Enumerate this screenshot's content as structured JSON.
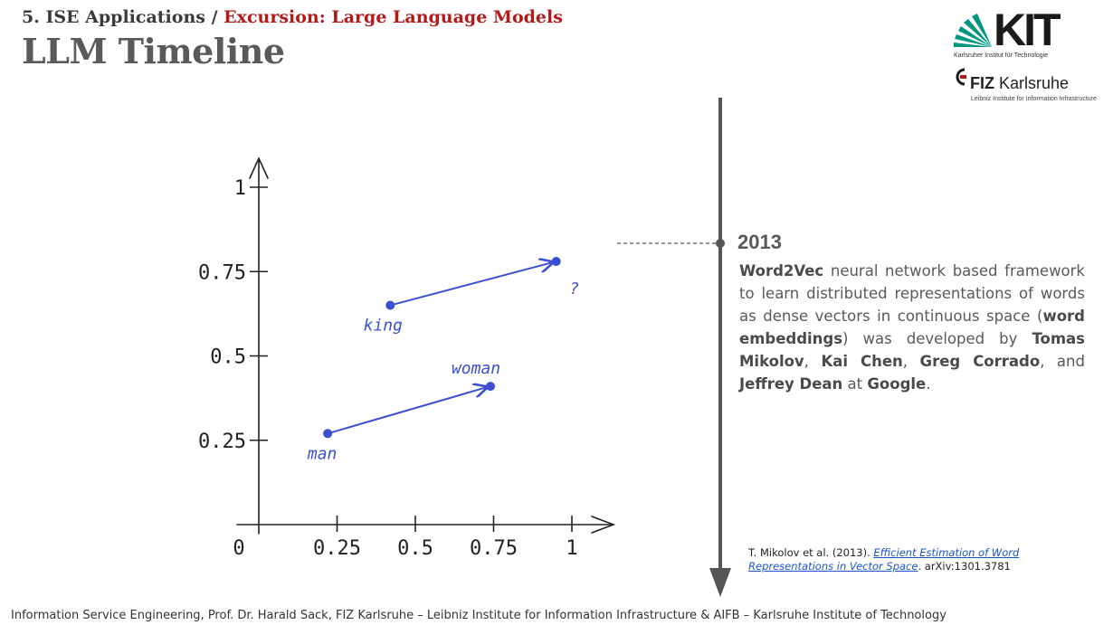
{
  "header": {
    "section": "5. ISE Applications / ",
    "topic": "Excursion: Large Language Models",
    "title": "LLM Timeline"
  },
  "logos": {
    "kit_text": "KIT",
    "kit_subtitle": "Karlsruher Institut für Technologie",
    "fiz_bold": "FIZ",
    "fiz_rest": " Karlsruhe",
    "fiz_subtitle": "Leibniz Institute for Information Infrastructure"
  },
  "timeline": {
    "year": "2013",
    "description": [
      {
        "text": "Word2Vec",
        "bold": true
      },
      {
        "text": " neural network based framework to learn distributed representations of words as dense vectors in continuous space (",
        "bold": false
      },
      {
        "text": "word embeddings",
        "bold": true
      },
      {
        "text": ") was developed by ",
        "bold": false
      },
      {
        "text": "Tomas Mikolov",
        "bold": true
      },
      {
        "text": ", ",
        "bold": false
      },
      {
        "text": "Kai Chen",
        "bold": true
      },
      {
        "text": ", ",
        "bold": false
      },
      {
        "text": "Greg Corrado",
        "bold": true
      },
      {
        "text": ", and ",
        "bold": false
      },
      {
        "text": "Jeffrey Dean",
        "bold": true
      },
      {
        "text": " at ",
        "bold": false
      },
      {
        "text": "Google",
        "bold": true
      },
      {
        "text": ".",
        "bold": false
      }
    ]
  },
  "reference": {
    "prefix": "T. Mikolov et al. (2013). ",
    "link_text": "Efficient Estimation of Word Representations in Vector Space",
    "suffix": ". arXiv:1301.3781"
  },
  "footer": "Information Service Engineering, Prof. Dr. Harald Sack, FIZ Karlsruhe – Leibniz Institute for Information Infrastructure & AIFB – Karlsruhe Institute of Technology",
  "colors": {
    "accent": "#b31b1b",
    "vector_blue": "#3a4fcf",
    "kit_green": "#009682",
    "timeline_gray": "#555555"
  },
  "chart_data": {
    "type": "scatter",
    "x_ticks": [
      "0",
      "0.25",
      "0.5",
      "0.75",
      "1"
    ],
    "y_ticks": [
      "0.25",
      "0.5",
      "0.75",
      "1"
    ],
    "xlim": [
      0,
      1.1
    ],
    "ylim": [
      0,
      1.1
    ],
    "points": [
      {
        "label": "man",
        "x": 0.22,
        "y": 0.27
      },
      {
        "label": "woman",
        "x": 0.74,
        "y": 0.41
      },
      {
        "label": "king",
        "x": 0.42,
        "y": 0.65
      },
      {
        "label": "?",
        "x": 0.95,
        "y": 0.78
      }
    ],
    "arrows": [
      {
        "from": "man",
        "to": "woman"
      },
      {
        "from": "king",
        "to": "?"
      }
    ]
  }
}
